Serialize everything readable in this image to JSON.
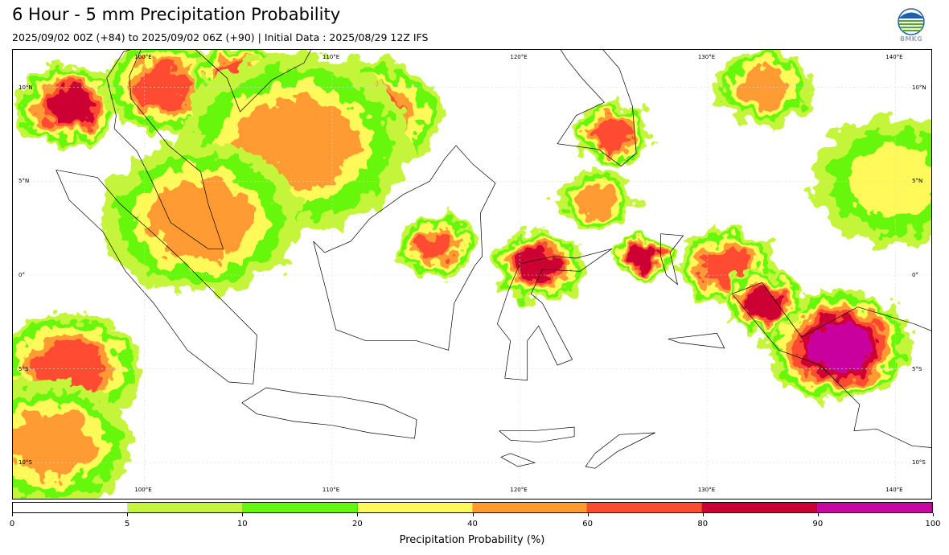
{
  "header": {
    "title": "6 Hour - 5 mm Precipitation Probability",
    "subtitle": "2025/09/02 00Z (+84) to 2025/09/02 06Z (+90) | Initial Data : 2025/08/29 12Z IFS"
  },
  "logo": {
    "text": "BMKG",
    "colors": [
      "#1f5fb0",
      "#5aa531",
      "#ffffff"
    ]
  },
  "map": {
    "lon_labels": [
      "100°E",
      "110°E",
      "120°E",
      "130°E",
      "140°E"
    ],
    "lat_labels": [
      "10°N",
      "5°N",
      "0°",
      "5°S",
      "10°S"
    ],
    "extent": {
      "lon": [
        93,
        142
      ],
      "lat": [
        -12,
        12
      ]
    },
    "probability_regions": [
      {
        "lon": 96,
        "lat": 9,
        "p": 85,
        "r": 1.6
      },
      {
        "lon": 101,
        "lat": 10,
        "p": 70,
        "r": 1.8
      },
      {
        "lon": 105,
        "lat": 10.5,
        "p": 75,
        "r": 1.3
      },
      {
        "lon": 112,
        "lat": 8.5,
        "p": 62,
        "r": 2.2
      },
      {
        "lon": 108,
        "lat": 7,
        "p": 45,
        "r": 3.5
      },
      {
        "lon": 96,
        "lat": -5,
        "p": 65,
        "r": 2.2
      },
      {
        "lon": 95,
        "lat": -9,
        "p": 50,
        "r": 2.5
      },
      {
        "lon": 133,
        "lat": 10,
        "p": 55,
        "r": 1.5
      },
      {
        "lon": 125,
        "lat": 7.5,
        "p": 78,
        "r": 1.2
      },
      {
        "lon": 131,
        "lat": 0.5,
        "p": 60,
        "r": 1.5
      },
      {
        "lon": 137,
        "lat": -3.8,
        "p": 92,
        "r": 2.2
      },
      {
        "lon": 133,
        "lat": -1.5,
        "p": 85,
        "r": 1.2
      },
      {
        "lon": 121,
        "lat": 0.5,
        "p": 82,
        "r": 1.4
      },
      {
        "lon": 126.5,
        "lat": 1,
        "p": 80,
        "r": 0.9
      },
      {
        "lon": 115.5,
        "lat": 1.5,
        "p": 72,
        "r": 1.2
      },
      {
        "lon": 124,
        "lat": 4,
        "p": 55,
        "r": 1.2
      },
      {
        "lon": 103,
        "lat": 3,
        "p": 40,
        "r": 3.0
      },
      {
        "lon": 140,
        "lat": 5,
        "p": 35,
        "r": 2.5
      }
    ],
    "colors": {
      "land_outline": "#000000",
      "grid": "#d9d9d9"
    }
  },
  "colorbar": {
    "boundaries": [
      0,
      5,
      10,
      20,
      40,
      60,
      80,
      90,
      100
    ],
    "colors": [
      "#ffffff",
      "#c4f53b",
      "#66f70a",
      "#fff95a",
      "#ff9b30",
      "#ff4b33",
      "#cc0033",
      "#c9069e"
    ],
    "tick_labels": [
      "0",
      "5",
      "10",
      "20",
      "40",
      "60",
      "80",
      "90",
      "100"
    ],
    "label": "Precipitation Probability (%)"
  }
}
